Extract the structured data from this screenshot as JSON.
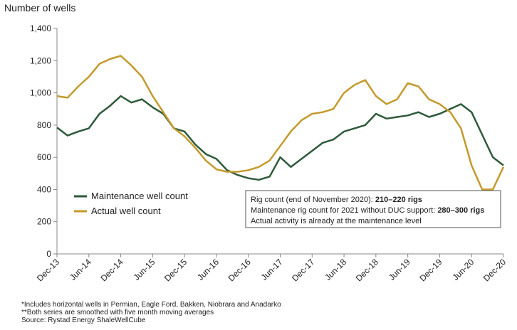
{
  "chart_data": {
    "type": "line",
    "y_axis_label": "Number of wells",
    "categories": [
      "Dec-13",
      null,
      null,
      "Jun-14",
      null,
      null,
      "Dec-14",
      null,
      null,
      "Jun-15",
      null,
      null,
      "Dec-15",
      null,
      null,
      "Jun-16",
      null,
      null,
      "Dec-16",
      null,
      null,
      "Jun-17",
      null,
      null,
      "Dec-17",
      null,
      null,
      "Jun-18",
      null,
      null,
      "Dec-18",
      null,
      null,
      "Jun-19",
      null,
      null,
      "Dec-19",
      null,
      null,
      "Jun-20",
      null,
      null,
      "Dec-20"
    ],
    "series": [
      {
        "name": "Maintenance well count",
        "color": "#2e5a3a",
        "values": [
          785,
          735,
          760,
          780,
          870,
          920,
          980,
          940,
          960,
          910,
          870,
          780,
          760,
          680,
          620,
          590,
          520,
          490,
          470,
          460,
          480,
          600,
          540,
          590,
          640,
          690,
          710,
          760,
          780,
          800,
          870,
          840,
          850,
          860,
          880,
          850,
          870,
          900,
          930,
          880,
          740,
          600,
          550
        ]
      },
      {
        "name": "Actual well count",
        "color": "#c49a2c",
        "values": [
          980,
          970,
          1040,
          1100,
          1180,
          1210,
          1230,
          1170,
          1100,
          980,
          880,
          780,
          730,
          660,
          580,
          525,
          510,
          510,
          520,
          540,
          580,
          670,
          760,
          830,
          870,
          880,
          900,
          1000,
          1050,
          1080,
          980,
          930,
          960,
          1060,
          1040,
          960,
          930,
          880,
          780,
          550,
          400,
          400,
          540
        ]
      }
    ],
    "ylim": [
      0,
      1400
    ],
    "yticks": [
      0,
      200,
      400,
      600,
      800,
      {
        "value": 1000,
        "label": "1,000"
      },
      {
        "value": 1200,
        "label": "1,200"
      },
      {
        "value": 1400,
        "label": "1,400"
      }
    ],
    "legend": "lower left",
    "annotation": [
      {
        "text": "Rig count (end of November 2020): ",
        "bold": "210–220 rigs"
      },
      {
        "text": "Maintenance rig count for 2021 without DUC support: ",
        "bold": "280–300 rigs"
      },
      {
        "text": "Actual activity is already at the maintenance level"
      }
    ],
    "footnotes": [
      "*Includes horizontal wells in Permian, Eagle Ford, Bakken, Niobrara and Anadarko",
      "**Both series are smoothed with five month moving averages",
      "Source: Rystad Energy ShaleWellCube"
    ]
  }
}
